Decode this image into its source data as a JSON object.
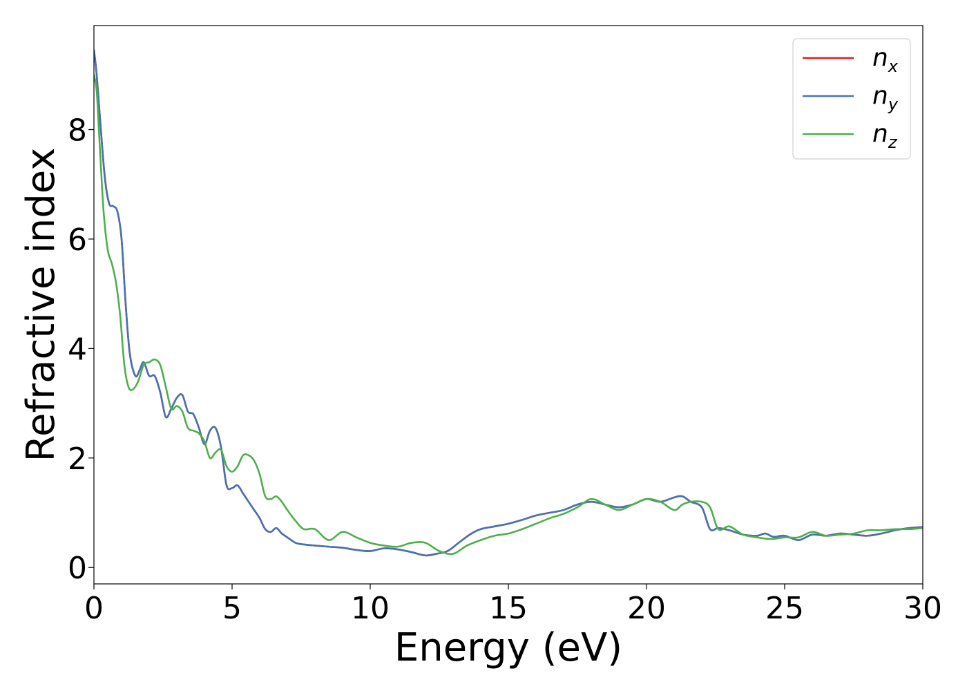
{
  "chart_data": {
    "type": "line",
    "xlabel": "Energy (eV)",
    "ylabel": "Refractive index",
    "xlim": [
      0,
      30
    ],
    "ylim": [
      -0.3,
      9.9
    ],
    "xticks": [
      0,
      5,
      10,
      15,
      20,
      25,
      30
    ],
    "yticks": [
      0,
      2,
      4,
      6,
      8
    ],
    "grid": false,
    "legend_position": "top-right",
    "series": [
      {
        "name": "n",
        "subscript": "x",
        "color": "#e41a1c",
        "x": [
          0,
          0.1,
          0.25,
          0.4,
          0.55,
          0.7,
          0.85,
          1.0,
          1.15,
          1.3,
          1.5,
          1.65,
          1.8,
          2.0,
          2.2,
          2.4,
          2.6,
          2.8,
          3.0,
          3.2,
          3.4,
          3.6,
          3.8,
          4.0,
          4.2,
          4.4,
          4.6,
          4.8,
          5.0,
          5.2,
          5.4,
          5.6,
          5.8,
          6.0,
          6.2,
          6.4,
          6.6,
          6.8,
          7.0,
          7.3,
          7.6,
          8.0,
          8.5,
          9.0,
          9.5,
          10.0,
          10.5,
          11.0,
          11.5,
          12.0,
          12.4,
          12.8,
          13.2,
          13.6,
          14.0,
          14.5,
          15.0,
          15.5,
          16.0,
          16.5,
          17.0,
          17.5,
          18.0,
          18.5,
          19.0,
          19.5,
          20.0,
          20.5,
          21.0,
          21.3,
          21.6,
          22.0,
          22.3,
          22.6,
          23.0,
          23.5,
          24.0,
          24.3,
          24.6,
          25.0,
          25.5,
          26.0,
          26.5,
          27.0,
          27.5,
          28.0,
          28.5,
          29.0,
          29.5,
          30.0
        ],
        "y": [
          9.45,
          9.0,
          8.0,
          7.1,
          6.65,
          6.6,
          6.5,
          6.0,
          4.8,
          3.9,
          3.5,
          3.6,
          3.75,
          3.5,
          3.5,
          3.2,
          2.75,
          2.9,
          3.1,
          3.15,
          2.85,
          2.8,
          2.55,
          2.25,
          2.5,
          2.55,
          2.2,
          1.5,
          1.45,
          1.5,
          1.35,
          1.2,
          1.05,
          0.9,
          0.7,
          0.65,
          0.72,
          0.62,
          0.55,
          0.45,
          0.42,
          0.4,
          0.38,
          0.36,
          0.32,
          0.3,
          0.35,
          0.33,
          0.28,
          0.22,
          0.25,
          0.3,
          0.45,
          0.6,
          0.7,
          0.75,
          0.8,
          0.87,
          0.95,
          1.0,
          1.05,
          1.15,
          1.2,
          1.15,
          1.1,
          1.15,
          1.25,
          1.2,
          1.28,
          1.3,
          1.2,
          1.1,
          0.7,
          0.72,
          0.68,
          0.6,
          0.58,
          0.62,
          0.56,
          0.58,
          0.5,
          0.6,
          0.58,
          0.62,
          0.6,
          0.58,
          0.62,
          0.68,
          0.72,
          0.74
        ]
      },
      {
        "name": "n",
        "subscript": "y",
        "color": "#4574b4",
        "x": [
          0,
          0.1,
          0.25,
          0.4,
          0.55,
          0.7,
          0.85,
          1.0,
          1.15,
          1.3,
          1.5,
          1.65,
          1.8,
          2.0,
          2.2,
          2.4,
          2.6,
          2.8,
          3.0,
          3.2,
          3.4,
          3.6,
          3.8,
          4.0,
          4.2,
          4.4,
          4.6,
          4.8,
          5.0,
          5.2,
          5.4,
          5.6,
          5.8,
          6.0,
          6.2,
          6.4,
          6.6,
          6.8,
          7.0,
          7.3,
          7.6,
          8.0,
          8.5,
          9.0,
          9.5,
          10.0,
          10.5,
          11.0,
          11.5,
          12.0,
          12.4,
          12.8,
          13.2,
          13.6,
          14.0,
          14.5,
          15.0,
          15.5,
          16.0,
          16.5,
          17.0,
          17.5,
          18.0,
          18.5,
          19.0,
          19.5,
          20.0,
          20.5,
          21.0,
          21.3,
          21.6,
          22.0,
          22.3,
          22.6,
          23.0,
          23.5,
          24.0,
          24.3,
          24.6,
          25.0,
          25.5,
          26.0,
          26.5,
          27.0,
          27.5,
          28.0,
          28.5,
          29.0,
          29.5,
          30.0
        ],
        "y": [
          9.45,
          9.0,
          8.0,
          7.1,
          6.65,
          6.6,
          6.5,
          6.0,
          4.8,
          3.9,
          3.5,
          3.6,
          3.75,
          3.5,
          3.5,
          3.2,
          2.75,
          2.9,
          3.1,
          3.15,
          2.85,
          2.8,
          2.55,
          2.25,
          2.5,
          2.55,
          2.2,
          1.5,
          1.45,
          1.5,
          1.35,
          1.2,
          1.05,
          0.9,
          0.7,
          0.65,
          0.72,
          0.62,
          0.55,
          0.45,
          0.42,
          0.4,
          0.38,
          0.36,
          0.32,
          0.3,
          0.35,
          0.33,
          0.28,
          0.22,
          0.25,
          0.3,
          0.45,
          0.6,
          0.7,
          0.75,
          0.8,
          0.87,
          0.95,
          1.0,
          1.05,
          1.15,
          1.2,
          1.15,
          1.1,
          1.15,
          1.25,
          1.2,
          1.28,
          1.3,
          1.2,
          1.1,
          0.7,
          0.72,
          0.68,
          0.6,
          0.58,
          0.62,
          0.56,
          0.58,
          0.5,
          0.6,
          0.58,
          0.62,
          0.6,
          0.58,
          0.62,
          0.68,
          0.72,
          0.74
        ]
      },
      {
        "name": "n",
        "subscript": "z",
        "color": "#4daf4a",
        "x": [
          0,
          0.1,
          0.2,
          0.35,
          0.5,
          0.65,
          0.8,
          0.95,
          1.1,
          1.25,
          1.4,
          1.6,
          1.8,
          2.0,
          2.2,
          2.4,
          2.6,
          2.8,
          3.0,
          3.2,
          3.4,
          3.6,
          3.8,
          4.0,
          4.2,
          4.4,
          4.6,
          4.8,
          5.0,
          5.2,
          5.4,
          5.6,
          5.8,
          6.0,
          6.2,
          6.4,
          6.6,
          6.8,
          7.0,
          7.3,
          7.6,
          8.0,
          8.5,
          9.0,
          9.5,
          10.0,
          10.5,
          11.0,
          11.5,
          12.0,
          12.5,
          13.0,
          13.5,
          14.0,
          14.5,
          15.0,
          15.5,
          16.0,
          16.5,
          17.0,
          17.5,
          18.0,
          18.5,
          19.0,
          19.5,
          20.0,
          20.5,
          21.0,
          21.3,
          21.6,
          22.0,
          22.3,
          22.6,
          23.0,
          23.5,
          24.0,
          24.5,
          25.0,
          25.5,
          26.0,
          26.5,
          27.0,
          27.5,
          28.0,
          28.5,
          29.0,
          29.5,
          30.0
        ],
        "y": [
          9.0,
          8.7,
          7.8,
          6.5,
          5.8,
          5.55,
          5.2,
          4.6,
          3.7,
          3.3,
          3.25,
          3.4,
          3.7,
          3.75,
          3.8,
          3.7,
          3.3,
          2.9,
          2.95,
          2.85,
          2.55,
          2.5,
          2.45,
          2.3,
          2.0,
          2.1,
          2.15,
          1.85,
          1.75,
          1.85,
          2.05,
          2.05,
          1.95,
          1.7,
          1.3,
          1.25,
          1.3,
          1.2,
          1.05,
          0.85,
          0.7,
          0.7,
          0.5,
          0.65,
          0.55,
          0.45,
          0.4,
          0.38,
          0.45,
          0.45,
          0.3,
          0.25,
          0.4,
          0.5,
          0.58,
          0.62,
          0.7,
          0.8,
          0.9,
          0.98,
          1.1,
          1.25,
          1.15,
          1.05,
          1.15,
          1.25,
          1.2,
          1.05,
          1.15,
          1.2,
          1.2,
          1.1,
          0.7,
          0.75,
          0.6,
          0.55,
          0.52,
          0.55,
          0.55,
          0.65,
          0.58,
          0.6,
          0.62,
          0.68,
          0.68,
          0.7,
          0.7,
          0.72
        ]
      }
    ]
  }
}
